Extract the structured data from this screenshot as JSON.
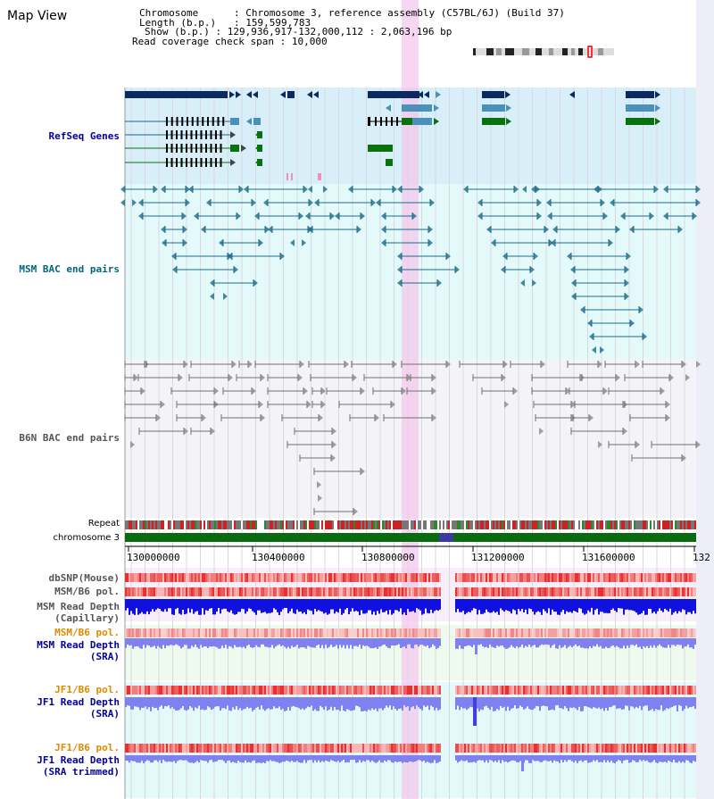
{
  "title": "Map View",
  "info": {
    "chromosome_key": "Chromosome",
    "chromosome_val": "Chromosome 3, reference assembly (C57BL/6J) (Build 37)",
    "length_key": "Length (b.p.)",
    "length_val": "159,599,783",
    "show_key": "Show (b.p.)",
    "show_val": "129,936,917-132,000,112 : 2,063,196 bp",
    "span_key": "Read coverage check span",
    "span_val": "10,000"
  },
  "tracks": {
    "refseq": "RefSeq Genes",
    "msm_bac": "MSM BAC end pairs",
    "b6n_bac": "B6N BAC end pairs",
    "repeat": "Repeat",
    "chromosome": "chromosome 3",
    "dbsnp": "dbSNP(Mouse)",
    "msm_b6_pol": "MSM/B6 pol.",
    "msm_depth_cap_1": "MSM Read Depth",
    "msm_depth_cap_2": "(Capillary)",
    "msm_b6_pol_sra": "MSM/B6 pol.",
    "msm_depth_sra_1": "MSM Read Depth",
    "msm_depth_sra_2": "(SRA)",
    "jf1_pol": "JF1/B6 pol.",
    "jf1_depth_1": "JF1 Read Depth",
    "jf1_depth_2": "(SRA)",
    "jf1_pol_trim": "JF1/B6 pol.",
    "jf1_trim_1": "JF1 Read Depth",
    "jf1_trim_2": "(SRA trimmed)"
  },
  "axis_ticks": [
    "130000000",
    "130400000",
    "130800000",
    "131200000",
    "131600000",
    "132"
  ],
  "colors": {
    "refseq_bg": "#d8eef8",
    "msm_bg": "#e4fafa",
    "b6n_bg": "#f4f4f8",
    "highlight": "#f4c8ec",
    "gene_dark": "#0a2a60",
    "gene_light": "#4a90b8",
    "gene_green": "#0a7010",
    "msm_line": "#1a6a8a",
    "b6n_line": "#707070",
    "chrom_green": "#0a6a10",
    "depth_blue": "#1010e0",
    "depth_light": "#8080f0",
    "pol_red": "#e84040",
    "label_blue": "#000099",
    "label_teal": "#006680",
    "label_orange": "#e08a00"
  }
}
